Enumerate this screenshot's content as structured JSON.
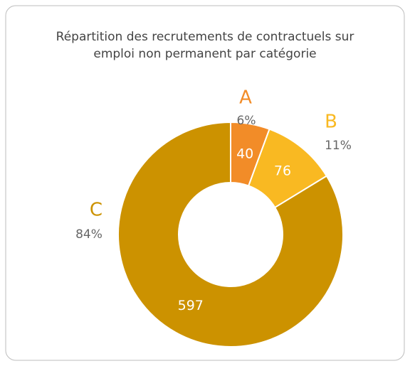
{
  "chart_data": {
    "type": "donut",
    "title": [
      "Répartition des recrutements de contractuels sur",
      "emploi non permanent par catégorie"
    ],
    "categories": [
      "A",
      "B",
      "C"
    ],
    "values": [
      40,
      76,
      597
    ],
    "percent_labels": [
      "6%",
      "11%",
      "84%"
    ],
    "colors": [
      "#f28c28",
      "#f9b922",
      "#cc9200"
    ]
  }
}
